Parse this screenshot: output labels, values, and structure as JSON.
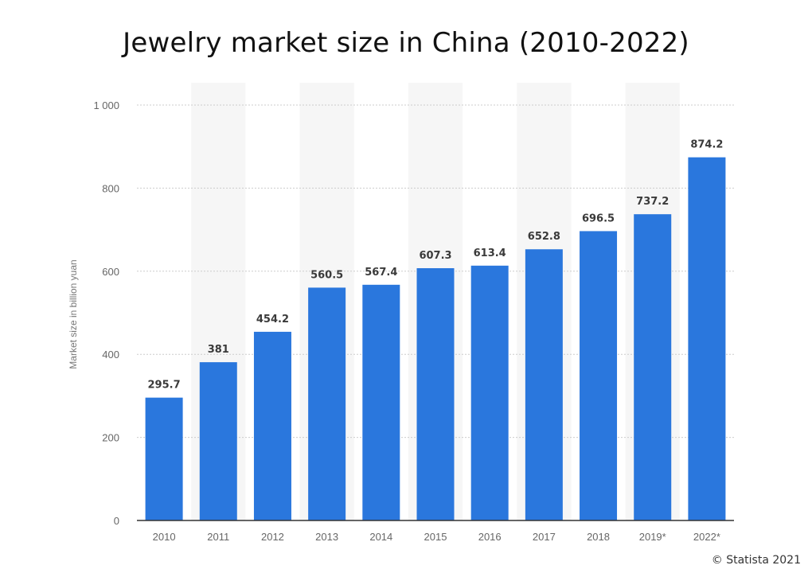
{
  "title": "Jewelry market size in China (2010-2022)",
  "credit": "© Statista 2021",
  "colors": {
    "bar": "#2a77dd",
    "band": "#f6f6f6",
    "grid": "#cccccc",
    "baseline": "#333333"
  },
  "chart_data": {
    "type": "bar",
    "title": "Jewelry market size in China (2010-2022)",
    "xlabel": "",
    "ylabel": "Market size in billion yuan",
    "categories": [
      "2010",
      "2011",
      "2012",
      "2013",
      "2014",
      "2015",
      "2016",
      "2017",
      "2018",
      "2019*",
      "2022*"
    ],
    "values": [
      295.7,
      381,
      454.2,
      560.5,
      567.4,
      607.3,
      613.4,
      652.8,
      696.5,
      737.2,
      874.2
    ],
    "value_labels": [
      "295.7",
      "381",
      "454.2",
      "560.5",
      "567.4",
      "607.3",
      "613.4",
      "652.8",
      "696.5",
      "737.2",
      "874.2"
    ],
    "ylim": [
      0,
      1000
    ],
    "yticks": [
      0,
      200,
      400,
      600,
      800,
      1000
    ],
    "ytick_labels": [
      "0",
      "200",
      "400",
      "600",
      "800",
      "1 000"
    ],
    "grid": true,
    "legend": "none"
  }
}
